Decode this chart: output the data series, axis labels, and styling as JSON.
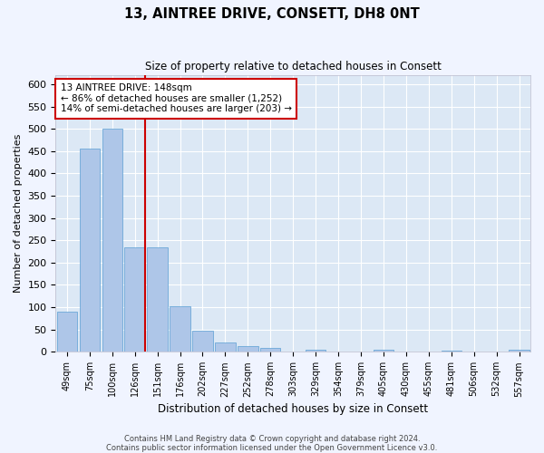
{
  "title": "13, AINTREE DRIVE, CONSETT, DH8 0NT",
  "subtitle": "Size of property relative to detached houses in Consett",
  "xlabel": "Distribution of detached houses by size in Consett",
  "ylabel": "Number of detached properties",
  "bins": [
    "49sqm",
    "75sqm",
    "100sqm",
    "126sqm",
    "151sqm",
    "176sqm",
    "202sqm",
    "227sqm",
    "252sqm",
    "278sqm",
    "303sqm",
    "329sqm",
    "354sqm",
    "379sqm",
    "405sqm",
    "430sqm",
    "455sqm",
    "481sqm",
    "506sqm",
    "532sqm",
    "557sqm"
  ],
  "bar_heights": [
    90,
    455,
    500,
    235,
    235,
    103,
    47,
    20,
    13,
    9,
    0,
    5,
    0,
    0,
    4,
    0,
    0,
    3,
    0,
    0,
    4
  ],
  "bar_color": "#aec6e8",
  "bar_edge_color": "#5a9fd4",
  "property_line_color": "#cc0000",
  "annotation_text": "13 AINTREE DRIVE: 148sqm\n← 86% of detached houses are smaller (1,252)\n14% of semi-detached houses are larger (203) →",
  "annotation_box_color": "#ffffff",
  "annotation_box_edge": "#cc0000",
  "ylim": [
    0,
    620
  ],
  "yticks": [
    0,
    50,
    100,
    150,
    200,
    250,
    300,
    350,
    400,
    450,
    500,
    550,
    600
  ],
  "plot_bg": "#dce8f5",
  "fig_bg": "#f0f4ff",
  "grid_color": "#ffffff",
  "footer_line1": "Contains HM Land Registry data © Crown copyright and database right 2024.",
  "footer_line2": "Contains public sector information licensed under the Open Government Licence v3.0."
}
